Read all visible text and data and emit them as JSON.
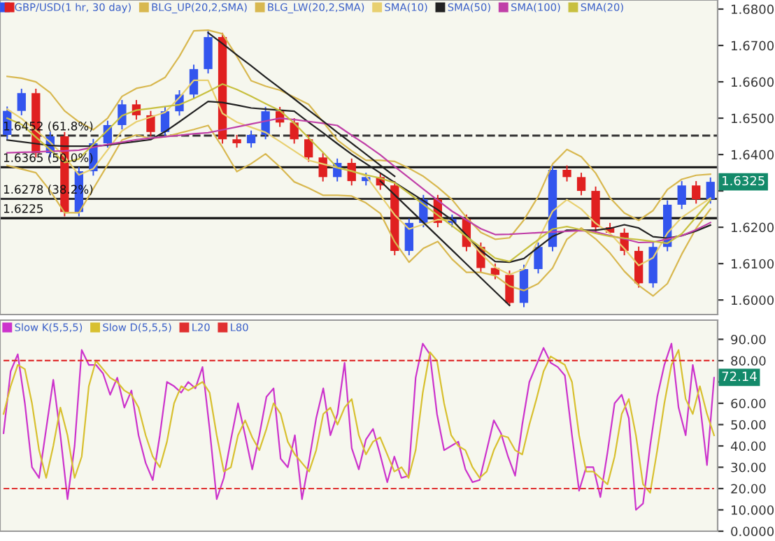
{
  "chart_data": [
    {
      "type": "candlestick",
      "categories": [
        null,
        null,
        null,
        null,
        null,
        null,
        null,
        null,
        null,
        null,
        null,
        null,
        null,
        null,
        null,
        null,
        null,
        null,
        null,
        null,
        null,
        null,
        null,
        null,
        null,
        null,
        null,
        null,
        null,
        null,
        null,
        null,
        null,
        null,
        null,
        null,
        null,
        null,
        null,
        null,
        null,
        null,
        null,
        null,
        null,
        null,
        null,
        null,
        null,
        null
      ],
      "ylim": [
        1.596,
        1.6825
      ],
      "yticks": [
        {
          "value": 1.6,
          "label": "1.6000"
        },
        {
          "value": 1.61,
          "label": "1.6100"
        },
        {
          "value": 1.62,
          "label": "1.6200"
        },
        {
          "value": 1.63,
          "label": null
        },
        {
          "value": 1.64,
          "label": "1.6400"
        },
        {
          "value": 1.65,
          "label": "1.6500"
        },
        {
          "value": 1.66,
          "label": "1.6600"
        },
        {
          "value": 1.67,
          "label": "1.6700"
        },
        {
          "value": 1.68,
          "label": "1.6800"
        }
      ],
      "tick_labels": "y",
      "legend": "top left",
      "series": [
        {
          "name": "GBP/USD(1 hr, 30 day)",
          "colors": [
            "#3355ee",
            "#3355ee",
            "#e02020",
            "#3355ee",
            "#e02020",
            "#3355ee",
            "#3355ee",
            "#3355ee",
            "#3355ee",
            "#e02020",
            "#e02020",
            "#3355ee",
            "#3355ee",
            "#3355ee",
            "#3355ee",
            "#e02020",
            "#e02020",
            "#3355ee",
            "#3355ee",
            "#e02020",
            "#e02020",
            "#e02020",
            "#e02020",
            "#3355ee",
            "#e02020",
            "#3355ee",
            "#e02020",
            "#e02020",
            "#3355ee",
            "#3355ee",
            "#e02020",
            "#3355ee",
            "#e02020",
            "#e02020",
            "#e02020",
            "#e02020",
            "#3355ee",
            "#3355ee",
            "#3355ee",
            "#e02020",
            "#e02020",
            "#e02020",
            "#e02020",
            "#e02020",
            "#e02020",
            "#3355ee",
            "#3355ee",
            "#3355ee",
            "#e02020",
            "#3355ee"
          ],
          "ohlc": [
            [
              1.6454,
              1.6532,
              1.6442,
              1.652
            ],
            [
              1.652,
              1.6581,
              1.6508,
              1.6569
            ],
            [
              1.6569,
              1.6581,
              1.6392,
              1.6404
            ],
            [
              1.6404,
              1.6462,
              1.6392,
              1.645
            ],
            [
              1.645,
              1.6462,
              1.623,
              1.6242
            ],
            [
              1.6242,
              1.6366,
              1.623,
              1.6354
            ],
            [
              1.6354,
              1.6443,
              1.6342,
              1.6431
            ],
            [
              1.6431,
              1.6493,
              1.6419,
              1.6481
            ],
            [
              1.6481,
              1.655,
              1.6469,
              1.6538
            ],
            [
              1.6538,
              1.655,
              1.6496,
              1.6508
            ],
            [
              1.6508,
              1.652,
              1.645,
              1.6462
            ],
            [
              1.6462,
              1.6531,
              1.645,
              1.6519
            ],
            [
              1.6519,
              1.6577,
              1.6507,
              1.6565
            ],
            [
              1.6565,
              1.6647,
              1.6553,
              1.6635
            ],
            [
              1.6635,
              1.6742,
              1.6623,
              1.6723
            ],
            [
              1.6723,
              1.6735,
              1.643,
              1.6442
            ],
            [
              1.6442,
              1.6454,
              1.6419,
              1.6431
            ],
            [
              1.6431,
              1.6466,
              1.6419,
              1.6454
            ],
            [
              1.6454,
              1.6531,
              1.6442,
              1.6519
            ],
            [
              1.6519,
              1.6531,
              1.6476,
              1.6488
            ],
            [
              1.6488,
              1.65,
              1.643,
              1.6442
            ],
            [
              1.6442,
              1.6454,
              1.638,
              1.6392
            ],
            [
              1.6392,
              1.6404,
              1.6326,
              1.6338
            ],
            [
              1.6338,
              1.6389,
              1.6326,
              1.6377
            ],
            [
              1.6377,
              1.6389,
              1.6315,
              1.6327
            ],
            [
              1.6327,
              1.635,
              1.6315,
              1.6338
            ],
            [
              1.6338,
              1.635,
              1.6303,
              1.6315
            ],
            [
              1.6315,
              1.6327,
              1.6123,
              1.6135
            ],
            [
              1.6135,
              1.6224,
              1.6123,
              1.6212
            ],
            [
              1.6212,
              1.6289,
              1.62,
              1.6277
            ],
            [
              1.6277,
              1.6289,
              1.62,
              1.6212
            ],
            [
              1.6212,
              1.6235,
              1.62,
              1.6223
            ],
            [
              1.6223,
              1.6235,
              1.6134,
              1.6146
            ],
            [
              1.6146,
              1.6158,
              1.6076,
              1.6088
            ],
            [
              1.6088,
              1.61,
              1.6057,
              1.6069
            ],
            [
              1.6069,
              1.6081,
              1.5985,
              1.5992
            ],
            [
              1.5992,
              1.6097,
              1.598,
              1.6085
            ],
            [
              1.6085,
              1.6158,
              1.6073,
              1.6146
            ],
            [
              1.6146,
              1.637,
              1.6134,
              1.6358
            ],
            [
              1.6358,
              1.637,
              1.6326,
              1.6338
            ],
            [
              1.6338,
              1.635,
              1.6288,
              1.63
            ],
            [
              1.63,
              1.6312,
              1.6188,
              1.62
            ],
            [
              1.62,
              1.6212,
              1.6183,
              1.6185
            ],
            [
              1.6185,
              1.6197,
              1.6123,
              1.6135
            ],
            [
              1.6135,
              1.6147,
              1.6034,
              1.6046
            ],
            [
              1.6046,
              1.6158,
              1.6034,
              1.6146
            ],
            [
              1.6146,
              1.6274,
              1.6134,
              1.6262
            ],
            [
              1.6262,
              1.6327,
              1.625,
              1.6315
            ],
            [
              1.6315,
              1.6327,
              1.6265,
              1.6277
            ],
            [
              1.6277,
              1.6337,
              1.6265,
              1.6325
            ]
          ]
        },
        {
          "type": "line",
          "name": "BLG_UP(20,2,SMA)",
          "color": "#d8b850",
          "values": [
            1.6615,
            1.661,
            1.66,
            1.657,
            1.652,
            1.649,
            1.6468,
            1.65,
            1.656,
            1.6582,
            1.659,
            1.6612,
            1.667,
            1.674,
            1.6742,
            1.6732,
            1.667,
            1.6603,
            1.6588,
            1.6577,
            1.6558,
            1.6538,
            1.649,
            1.644,
            1.641,
            1.6384,
            1.6384,
            1.6381,
            1.6362,
            1.634,
            1.631,
            1.6276,
            1.6227,
            1.6186,
            1.6167,
            1.6171,
            1.622,
            1.6285,
            1.6374,
            1.6414,
            1.6394,
            1.6349,
            1.6281,
            1.6239,
            1.6219,
            1.6246,
            1.6304,
            1.6332,
            1.6343,
            1.6346
          ]
        },
        {
          "type": "line",
          "name": "BLG_LW(20,2,SMA)",
          "color": "#d8b850",
          "values": [
            1.637,
            1.636,
            1.635,
            1.63,
            1.624,
            1.624,
            1.6306,
            1.6372,
            1.644,
            1.6454,
            1.6444,
            1.6449,
            1.6459,
            1.6469,
            1.648,
            1.642,
            1.6353,
            1.6375,
            1.6402,
            1.6366,
            1.6325,
            1.6308,
            1.6288,
            1.6288,
            1.6286,
            1.6267,
            1.6238,
            1.616,
            1.6104,
            1.6142,
            1.6161,
            1.6112,
            1.6076,
            1.6076,
            1.6067,
            1.6038,
            1.6026,
            1.6045,
            1.6088,
            1.6167,
            1.6198,
            1.6168,
            1.6129,
            1.6079,
            1.604,
            1.6011,
            1.6045,
            1.6126,
            1.6197,
            1.625
          ]
        },
        {
          "type": "line",
          "name": "SMA(10)",
          "color": "#e8d070",
          "values": [
            1.6525,
            1.6499,
            1.6466,
            1.6434,
            1.6394,
            1.6344,
            1.6361,
            1.6413,
            1.6465,
            1.649,
            1.6503,
            1.6516,
            1.6557,
            1.6604,
            1.6604,
            1.6513,
            1.6489,
            1.6475,
            1.6461,
            1.6436,
            1.641,
            1.6384,
            1.6374,
            1.6364,
            1.6355,
            1.6341,
            1.6288,
            1.6234,
            1.6195,
            1.6208,
            1.6221,
            1.6219,
            1.6174,
            1.6128,
            1.609,
            1.607,
            1.6085,
            1.6165,
            1.6244,
            1.6276,
            1.625,
            1.6211,
            1.6183,
            1.6141,
            1.6095,
            1.6116,
            1.6184,
            1.6227,
            1.6254,
            1.628
          ]
        },
        {
          "type": "line",
          "name": "SMA(50)",
          "color": "#222222",
          "values": [
            1.644,
            1.6435,
            1.643,
            1.6425,
            1.6423,
            1.6423,
            1.6423,
            1.6426,
            1.6431,
            1.6436,
            1.6441,
            1.6463,
            1.649,
            1.6518,
            1.6546,
            1.6543,
            1.6536,
            1.6528,
            1.6525,
            1.6522,
            1.6519,
            1.6489,
            1.646,
            1.643,
            1.6401,
            1.6375,
            1.6349,
            1.6323,
            1.6298,
            1.6273,
            1.6248,
            1.622,
            1.6178,
            1.6136,
            1.6106,
            1.6104,
            1.6114,
            1.6145,
            1.6175,
            1.6192,
            1.6192,
            1.6192,
            1.6197,
            1.6207,
            1.6198,
            1.6174,
            1.617,
            1.6177,
            1.619,
            1.6206
          ]
        },
        {
          "type": "line",
          "name": "SMA(100)",
          "color": "#c040a8",
          "values": [
            1.6405,
            1.6406,
            1.6407,
            1.6409,
            1.641,
            1.6412,
            1.642,
            1.6428,
            1.6434,
            1.6441,
            1.6445,
            1.6449,
            1.6453,
            1.6457,
            1.646,
            1.6468,
            1.6476,
            1.6484,
            1.6492,
            1.65,
            1.6496,
            1.6491,
            1.6486,
            1.648,
            1.6453,
            1.6427,
            1.6399,
            1.6367,
            1.6336,
            1.6305,
            1.6274,
            1.6244,
            1.622,
            1.6196,
            1.618,
            1.6181,
            1.6183,
            1.6185,
            1.6187,
            1.6189,
            1.6191,
            1.6187,
            1.6177,
            1.6168,
            1.6158,
            1.6159,
            1.6168,
            1.6177,
            1.6193,
            1.6213
          ]
        },
        {
          "type": "line",
          "name": "SMA(20)",
          "color": "#c8c040",
          "values": [
            1.65,
            1.6483,
            1.6448,
            1.6413,
            1.6378,
            1.6388,
            1.6428,
            1.6467,
            1.6507,
            1.6522,
            1.6527,
            1.6532,
            1.6537,
            1.6554,
            1.6573,
            1.6594,
            1.6579,
            1.656,
            1.654,
            1.6521,
            1.6486,
            1.6446,
            1.6406,
            1.6364,
            1.6354,
            1.6344,
            1.6335,
            1.6322,
            1.6293,
            1.6263,
            1.6233,
            1.6204,
            1.6174,
            1.6145,
            1.6115,
            1.6106,
            1.6136,
            1.6166,
            1.6195,
            1.6202,
            1.6193,
            1.6183,
            1.6175,
            1.617,
            1.6166,
            1.6161,
            1.6156,
            1.6182,
            1.6228,
            1.6275
          ]
        },
        {
          "type": "line",
          "color": "#222222",
          "values": [
            null,
            null,
            null,
            null,
            null,
            null,
            null,
            null,
            null,
            null,
            null,
            null,
            null,
            null,
            1.6735,
            1.6705,
            1.6674,
            1.6644,
            1.6613,
            1.6583,
            1.6553,
            1.6522,
            1.6492,
            1.6461,
            1.6431,
            1.6401,
            1.637,
            1.634,
            null,
            null,
            null,
            null,
            null,
            null,
            null,
            null,
            null,
            null,
            null,
            null,
            null,
            null,
            null,
            null,
            null,
            null,
            null,
            null,
            null,
            null
          ]
        },
        {
          "type": "line",
          "color": "#222222",
          "values": [
            null,
            null,
            null,
            null,
            null,
            null,
            null,
            null,
            null,
            null,
            null,
            null,
            null,
            null,
            null,
            null,
            null,
            null,
            null,
            null,
            null,
            null,
            null,
            null,
            null,
            null,
            1.6327,
            1.6289,
            1.6251,
            1.6213,
            1.6175,
            1.6137,
            1.6099,
            1.6061,
            1.6023,
            1.5985,
            null,
            null,
            null,
            null,
            null,
            null,
            null,
            null,
            null,
            null,
            null,
            null,
            null,
            null
          ]
        }
      ],
      "ref_lines": [
        {
          "axis": "y",
          "value": 1.6452,
          "label": "1.6452 (61.8%)",
          "color": "#333333",
          "line_style": "dashed"
        },
        {
          "axis": "y",
          "value": 1.6365,
          "label": "1.6365 (50.0%)",
          "color": "#111111",
          "line_style": "solid"
        },
        {
          "axis": "y",
          "value": 1.6278,
          "label": "1.6278 (38.2%)",
          "color": "#333333",
          "line_style": "solid"
        },
        {
          "axis": "y",
          "value": 1.6225,
          "label": "1.6225",
          "color": "#111111",
          "line_style": "solid"
        }
      ],
      "annotations": [
        {
          "text": "1.6325",
          "y": 1.6325
        }
      ]
    },
    {
      "type": "line",
      "categories": [
        null,
        null,
        null,
        null,
        null,
        null,
        null,
        null,
        null,
        null,
        null,
        null,
        null,
        null,
        null,
        null,
        null,
        null,
        null,
        null,
        null,
        null,
        null,
        null,
        null,
        null,
        null,
        null,
        null,
        null,
        null,
        null,
        null,
        null,
        null,
        null,
        null,
        null,
        null,
        null,
        null,
        null,
        null,
        null,
        null,
        null,
        null,
        null,
        null,
        null,
        null,
        null,
        null,
        null,
        null,
        null,
        null,
        null,
        null,
        null,
        null,
        null,
        null,
        null,
        null,
        null,
        null,
        null,
        null,
        null,
        null,
        null,
        null,
        null,
        null,
        null,
        null,
        null,
        null,
        null,
        null,
        null,
        null,
        null,
        null,
        null,
        null,
        null,
        null,
        null,
        null,
        null,
        null,
        null,
        null,
        null,
        null,
        null,
        null,
        null,
        null
      ],
      "ylim": [
        0,
        99
      ],
      "yticks": [
        {
          "value": 0,
          "label": "0.0000"
        },
        {
          "value": 10,
          "label": "10.000"
        },
        {
          "value": 20,
          "label": "20.00"
        },
        {
          "value": 30,
          "label": "30.00"
        },
        {
          "value": 40,
          "label": "40.00"
        },
        {
          "value": 50,
          "label": "50.00"
        },
        {
          "value": 60,
          "label": "60.00"
        },
        {
          "value": 70,
          "label": null
        },
        {
          "value": 80,
          "label": "80.00"
        },
        {
          "value": 90,
          "label": "90.00"
        }
      ],
      "tick_labels": "y",
      "legend": "top left",
      "series": [
        {
          "name": "Slow K(5,5,5)",
          "color": "#cc33cc",
          "values": [
            46,
            75,
            83,
            60,
            30,
            25,
            48,
            71,
            45,
            15,
            40,
            85,
            78,
            78,
            74,
            64,
            72,
            58,
            66,
            45,
            32,
            24,
            45,
            70,
            68,
            65,
            70,
            67,
            77,
            48,
            15,
            25,
            43,
            60,
            45,
            29,
            45,
            63,
            67,
            34,
            30,
            45,
            15,
            33,
            53,
            67,
            45,
            55,
            79,
            39,
            29,
            43,
            48,
            36,
            23,
            35,
            25,
            26,
            72,
            88,
            83,
            55,
            38,
            40,
            42,
            29,
            23,
            24,
            38,
            52,
            46,
            35,
            26,
            50,
            70,
            78,
            86,
            79,
            77,
            73,
            45,
            19,
            30,
            30,
            16,
            37,
            60,
            64,
            53,
            10,
            13,
            40,
            63,
            78,
            88,
            58,
            45,
            78,
            60,
            31,
            72
          ]
        },
        {
          "name": "Slow D(5,5,5)",
          "color": "#d8c030",
          "values": [
            55,
            68,
            78,
            76,
            60,
            38,
            25,
            40,
            58,
            45,
            25,
            35,
            68,
            80,
            76,
            72,
            70,
            66,
            64,
            58,
            45,
            35,
            30,
            42,
            60,
            68,
            66,
            68,
            70,
            65,
            45,
            28,
            30,
            45,
            52,
            44,
            38,
            48,
            60,
            55,
            42,
            36,
            32,
            28,
            38,
            55,
            58,
            50,
            58,
            62,
            45,
            36,
            42,
            44,
            36,
            28,
            30,
            25,
            38,
            65,
            84,
            80,
            60,
            45,
            40,
            38,
            30,
            25,
            28,
            38,
            45,
            44,
            38,
            36,
            50,
            62,
            75,
            82,
            80,
            78,
            70,
            45,
            28,
            28,
            25,
            22,
            35,
            55,
            62,
            45,
            22,
            18,
            38,
            60,
            78,
            85,
            62,
            55,
            68,
            55,
            45
          ]
        },
        {
          "name": "L20",
          "color": "#e03030",
          "line_style": "dashed",
          "values": [
            20,
            20,
            20,
            20,
            20,
            20,
            20,
            20,
            20,
            20,
            20,
            20,
            20,
            20,
            20,
            20,
            20,
            20,
            20,
            20,
            20,
            20,
            20,
            20,
            20,
            20,
            20,
            20,
            20,
            20,
            20,
            20,
            20,
            20,
            20,
            20,
            20,
            20,
            20,
            20,
            20,
            20,
            20,
            20,
            20,
            20,
            20,
            20,
            20,
            20,
            20,
            20,
            20,
            20,
            20,
            20,
            20,
            20,
            20,
            20,
            20,
            20,
            20,
            20,
            20,
            20,
            20,
            20,
            20,
            20,
            20,
            20,
            20,
            20,
            20,
            20,
            20,
            20,
            20,
            20,
            20,
            20,
            20,
            20,
            20,
            20,
            20,
            20,
            20,
            20,
            20,
            20,
            20,
            20,
            20,
            20,
            20,
            20,
            20,
            20,
            20
          ]
        },
        {
          "name": "L80",
          "color": "#e03030",
          "line_style": "dashed",
          "values": [
            80,
            80,
            80,
            80,
            80,
            80,
            80,
            80,
            80,
            80,
            80,
            80,
            80,
            80,
            80,
            80,
            80,
            80,
            80,
            80,
            80,
            80,
            80,
            80,
            80,
            80,
            80,
            80,
            80,
            80,
            80,
            80,
            80,
            80,
            80,
            80,
            80,
            80,
            80,
            80,
            80,
            80,
            80,
            80,
            80,
            80,
            80,
            80,
            80,
            80,
            80,
            80,
            80,
            80,
            80,
            80,
            80,
            80,
            80,
            80,
            80,
            80,
            80,
            80,
            80,
            80,
            80,
            80,
            80,
            80,
            80,
            80,
            80,
            80,
            80,
            80,
            80,
            80,
            80,
            80,
            80,
            80,
            80,
            80,
            80,
            80,
            80,
            80,
            80,
            80,
            80,
            80,
            80,
            80,
            80,
            80,
            80,
            80,
            80,
            80,
            80
          ]
        }
      ],
      "annotations": [
        {
          "text": "72.14",
          "y": 72.14
        }
      ]
    }
  ]
}
